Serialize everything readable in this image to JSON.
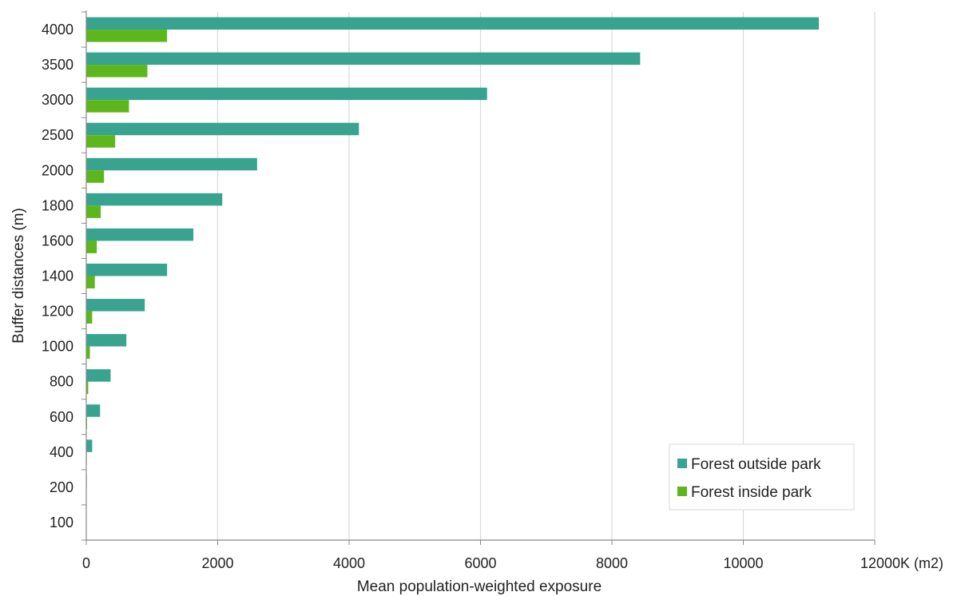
{
  "chart_data": {
    "type": "bar",
    "orientation": "horizontal",
    "categories": [
      "100",
      "200",
      "400",
      "600",
      "800",
      "1000",
      "1200",
      "1400",
      "1600",
      "1800",
      "2000",
      "2500",
      "3000",
      "3500",
      "4000"
    ],
    "series": [
      {
        "name": "Forest outside park",
        "color": "#38a38e",
        "values": [
          3,
          8,
          90,
          210,
          370,
          610,
          890,
          1230,
          1630,
          2070,
          2600,
          4150,
          6100,
          8430,
          11150
        ]
      },
      {
        "name": "Forest inside park",
        "color": "#5db71c",
        "values": [
          0,
          0,
          8,
          12,
          30,
          55,
          90,
          130,
          160,
          220,
          270,
          440,
          650,
          930,
          1230
        ]
      }
    ],
    "title": "",
    "xlabel": "Mean population-weighted  exposure",
    "ylabel": "Buffer distances (m)",
    "x_unit_label": "K (m2)",
    "xlim": [
      0,
      12000
    ],
    "x_ticks": [
      0,
      2000,
      4000,
      6000,
      8000,
      10000,
      12000
    ],
    "grid": "vertical",
    "legend_position": "bottom-right"
  }
}
